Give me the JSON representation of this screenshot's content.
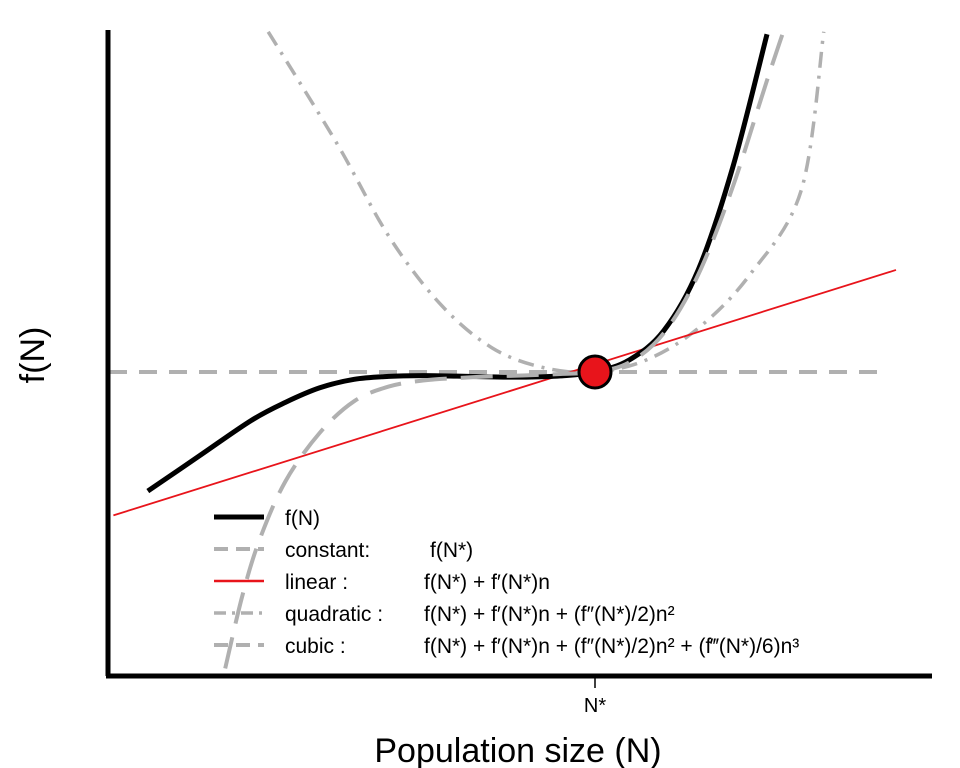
{
  "chart_data": {
    "type": "line",
    "title": "",
    "xlabel": "Population size (N)",
    "ylabel": "f(N)",
    "xlim": [
      -3,
      1.7
    ],
    "ylim": [
      -1.18,
      1.32
    ],
    "grid": false,
    "legend_position": "bottom-left",
    "x_ticks": [
      {
        "value": 0,
        "label": "N*"
      }
    ],
    "equilibrium_point": {
      "x": 0,
      "y": 0,
      "color": "#e8141b"
    },
    "series": [
      {
        "name": "f(N)",
        "style": "solid",
        "color": "#000000",
        "x": [
          -2.6,
          -2.3,
          -2.0,
          -1.8,
          -1.6,
          -1.4,
          -1.2,
          -1.0,
          -0.8,
          -0.6,
          -0.4,
          -0.2,
          0.0,
          0.2,
          0.4,
          0.6,
          0.8,
          1.0
        ],
        "y": [
          -0.49,
          -0.345,
          -0.2,
          -0.125,
          -0.065,
          -0.03,
          -0.018,
          -0.015,
          -0.017,
          -0.02,
          -0.021,
          -0.016,
          0.0,
          0.05,
          0.17,
          0.42,
          0.84,
          1.39
        ]
      },
      {
        "name": "constant",
        "style": "dashed",
        "color": "#b0b0b0",
        "x": [
          -3.0,
          1.7
        ],
        "y": [
          0.0,
          0.0
        ]
      },
      {
        "name": "linear",
        "style": "solid",
        "color": "#e8141b",
        "x": [
          -2.8,
          1.75
        ],
        "y": [
          -0.59,
          0.42
        ]
      },
      {
        "name": "quadratic",
        "style": "dot-dash",
        "color": "#b0b0b0",
        "x": [
          -1.9,
          -1.5,
          -1.2,
          -0.9,
          -0.6,
          -0.3,
          0.0,
          0.3,
          0.6,
          0.9,
          1.2,
          1.33
        ],
        "y": [
          1.4,
          0.94,
          0.56,
          0.28,
          0.1,
          0.018,
          0.0,
          0.05,
          0.18,
          0.4,
          0.75,
          1.4
        ]
      },
      {
        "name": "cubic",
        "style": "long-dash",
        "color": "#b0b0b0",
        "x": [
          -2.15,
          -2.05,
          -1.95,
          -1.8,
          -1.6,
          -1.4,
          -1.2,
          -1.0,
          -0.8,
          -0.6,
          -0.4,
          -0.2,
          0.0,
          0.2,
          0.4,
          0.6,
          0.8,
          1.0,
          1.2
        ],
        "y": [
          -1.22,
          -0.92,
          -0.69,
          -0.45,
          -0.25,
          -0.12,
          -0.06,
          -0.035,
          -0.025,
          -0.018,
          -0.014,
          -0.008,
          0.0,
          0.04,
          0.16,
          0.4,
          0.76,
          1.2,
          1.62
        ]
      }
    ],
    "legend": [
      {
        "series": "f(N)",
        "label": "f(N)",
        "formula": ""
      },
      {
        "series": "constant",
        "label": "constant:",
        "formula": "f(N*)"
      },
      {
        "series": "linear",
        "label": "linear :",
        "formula": "f(N*) + f′(N*)n"
      },
      {
        "series": "quadratic",
        "label": "quadratic :",
        "formula": "f(N*) + f′(N*)n + (f″(N*)/2)n²"
      },
      {
        "series": "cubic",
        "label": "cubic :",
        "formula": "f(N*) + f′(N*)n + (f″(N*)/2)n² + (f‴(N*)/6)n³"
      }
    ]
  }
}
